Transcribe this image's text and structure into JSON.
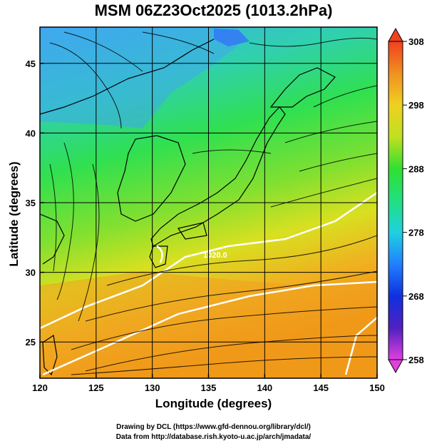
{
  "title": "MSM 06Z23Oct2025 (1013.2hPa)",
  "xlabel": "Longitude (degrees)",
  "ylabel": "Latitude  (degrees)",
  "credits": {
    "line1": "Drawing by DCL (https://www.gfd-dennou.org/library/dcl/)",
    "line2": "Data from http://database.rish.kyoto-u.ac.jp/arch/jmadata/"
  },
  "chart_data": {
    "type": "heatmap",
    "variable": "temperature with streamlines and pressure contours",
    "xlim": [
      120,
      150
    ],
    "ylim": [
      22.4,
      47.6
    ],
    "x_ticks": [
      "120",
      "125",
      "130",
      "135",
      "140",
      "145",
      "150"
    ],
    "y_ticks": [
      "25",
      "30",
      "35",
      "40",
      "45"
    ],
    "grid": true,
    "colorbar": {
      "min": 258,
      "max": 308,
      "ticks": [
        "258",
        "268",
        "278",
        "288",
        "298",
        "308"
      ]
    },
    "contour_label": "1020.0"
  },
  "colors": {
    "cold": "#3060ff",
    "cool": "#30c0f0",
    "mild": "#30e050",
    "warm": "#e8e820",
    "hot": "#f0a020",
    "contour": "#ffffff"
  }
}
